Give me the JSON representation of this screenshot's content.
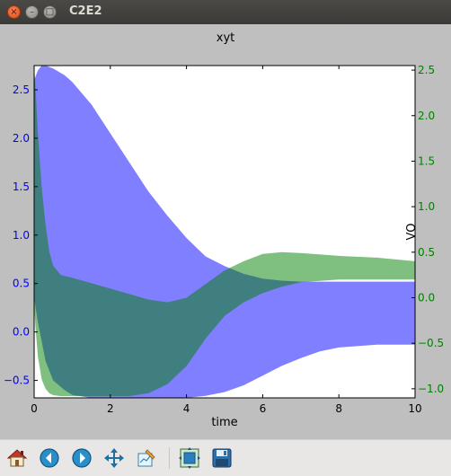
{
  "window": {
    "title": "C2E2",
    "close_glyph": "×",
    "minimize_glyph": "–",
    "maximize_glyph": "□"
  },
  "toolbar": {
    "buttons": [
      {
        "icon": "home-icon",
        "action": "home"
      },
      {
        "icon": "back-icon",
        "action": "back"
      },
      {
        "icon": "forward-icon",
        "action": "forward"
      },
      {
        "icon": "pan-icon",
        "action": "pan"
      },
      {
        "icon": "edit-icon",
        "action": "edit"
      },
      {
        "icon": "subplots-icon",
        "action": "subplots"
      },
      {
        "icon": "save-icon",
        "action": "save"
      }
    ]
  },
  "colors": {
    "series_x": "#0000ff",
    "series_vo": "#008000",
    "left_ticks": "#0000ff",
    "right_ticks": "#008000"
  },
  "chart_data": {
    "type": "area",
    "title": "xyt",
    "xlabel": "time",
    "ylabel_right": "VO",
    "xlim": [
      0,
      10
    ],
    "ylim_left": [
      -0.68,
      2.75
    ],
    "ylim_right": [
      -1.1,
      2.55
    ],
    "x_ticks": [
      "0",
      "2",
      "4",
      "6",
      "8",
      "10"
    ],
    "y_ticks_left": [
      "−0.5",
      "0.0",
      "0.5",
      "1.0",
      "1.5",
      "2.0",
      "2.5"
    ],
    "y_ticks_right": [
      "−1.0",
      "−0.5",
      "0.0",
      "0.5",
      "1.0",
      "1.5",
      "2.0",
      "2.5"
    ],
    "grid": false,
    "series": [
      {
        "axis": "left",
        "color": "#0000ff",
        "x": [
          0,
          0.1,
          0.2,
          0.3,
          0.5,
          0.8,
          1.0,
          1.5,
          2.0,
          2.5,
          3.0,
          3.5,
          4.0,
          4.5,
          5.0,
          5.5,
          6.0,
          6.5,
          7.0,
          7.5,
          8.0,
          9.0,
          10.0
        ],
        "upper": [
          2.6,
          2.7,
          2.75,
          2.75,
          2.72,
          2.65,
          2.58,
          2.35,
          2.05,
          1.75,
          1.45,
          1.2,
          0.97,
          0.78,
          0.68,
          0.6,
          0.55,
          0.53,
          0.52,
          0.52,
          0.52,
          0.52,
          0.52
        ],
        "lower": [
          0.35,
          0.1,
          -0.1,
          -0.3,
          -0.5,
          -0.6,
          -0.65,
          -0.68,
          -0.68,
          -0.68,
          -0.68,
          -0.68,
          -0.68,
          -0.66,
          -0.62,
          -0.55,
          -0.45,
          -0.35,
          -0.27,
          -0.2,
          -0.16,
          -0.13,
          -0.13
        ]
      },
      {
        "axis": "right",
        "color": "#008000",
        "x": [
          0,
          0.05,
          0.1,
          0.2,
          0.3,
          0.4,
          0.5,
          0.7,
          1.0,
          1.5,
          2.0,
          2.5,
          3.0,
          3.5,
          4.0,
          4.5,
          5.0,
          5.5,
          6.0,
          6.5,
          7.0,
          8.0,
          9.0,
          10.0
        ],
        "upper": [
          2.55,
          2.2,
          1.8,
          1.2,
          0.8,
          0.5,
          0.35,
          0.25,
          0.22,
          0.16,
          0.1,
          0.04,
          -0.02,
          -0.05,
          0.0,
          0.15,
          0.3,
          0.4,
          0.48,
          0.5,
          0.49,
          0.46,
          0.44,
          0.4
        ],
        "lower": [
          -0.1,
          -0.4,
          -0.65,
          -0.9,
          -1.0,
          -1.05,
          -1.07,
          -1.08,
          -1.08,
          -1.08,
          -1.08,
          -1.08,
          -1.05,
          -0.95,
          -0.75,
          -0.45,
          -0.2,
          -0.05,
          0.05,
          0.12,
          0.17,
          0.2,
          0.2,
          0.2
        ]
      }
    ]
  }
}
